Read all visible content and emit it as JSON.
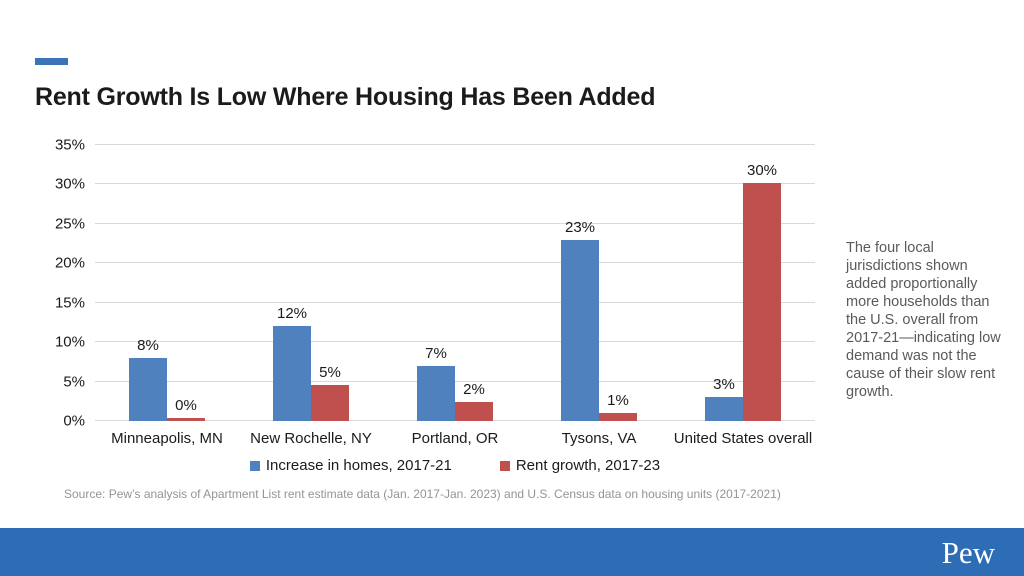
{
  "header": {
    "title": "Rent Growth Is Low Where Housing Has Been Added"
  },
  "chart_data": {
    "type": "bar",
    "title": "Rent Growth Is Low Where Housing Has Been Added",
    "categories": [
      "Minneapolis, MN",
      "New Rochelle, NY",
      "Portland, OR",
      "Tysons, VA",
      "United States overall"
    ],
    "series": [
      {
        "name": "Increase in homes, 2017-21",
        "color": "#4e81bd",
        "values": [
          8,
          12,
          7,
          23,
          3
        ],
        "labels": [
          "8%",
          "12%",
          "7%",
          "23%",
          "3%"
        ],
        "bar_heights": [
          8,
          12,
          7,
          23,
          3
        ]
      },
      {
        "name": "Rent growth, 2017-23",
        "color": "#c0504d",
        "values": [
          0,
          5,
          2,
          1,
          30
        ],
        "labels": [
          "0%",
          "5%",
          "2%",
          "1%",
          "30%"
        ],
        "bar_heights": [
          0.4,
          4.6,
          2.4,
          1.0,
          30.2
        ]
      }
    ],
    "ylim": [
      0,
      35
    ],
    "y_tick_step": 5,
    "y_ticks": [
      "0%",
      "5%",
      "10%",
      "15%",
      "20%",
      "25%",
      "30%",
      "35%"
    ],
    "grid": "horizontal",
    "legend_position": "bottom"
  },
  "annotation": {
    "text": "The four local jurisdictions shown added proportionally more households than the U.S. overall from 2017-21—indicating low demand was not the cause of their slow rent growth."
  },
  "source": {
    "text": "Source: Pew’s analysis of Apartment List rent estimate data (Jan. 2017-Jan. 2023) and U.S. Census data on housing units (2017-2021)"
  },
  "footer": {
    "brand": "Pew"
  },
  "colors": {
    "accent_dash": "#3b73b9",
    "series_blue": "#4e81bd",
    "series_red": "#c0504d",
    "footer_bar": "#2d6db5",
    "gridline": "#d9d9d9"
  }
}
